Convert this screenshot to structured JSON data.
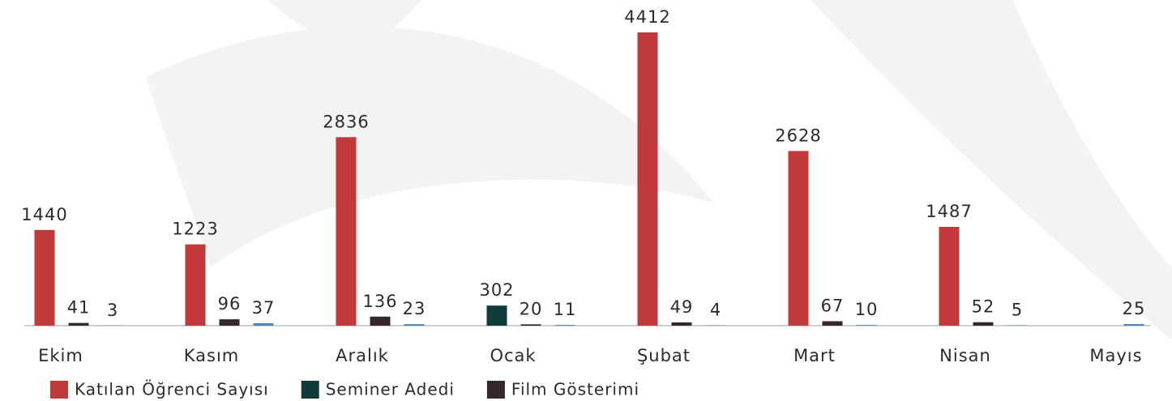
{
  "chart_data": {
    "type": "bar",
    "categories": [
      "Ekim",
      "Kasım",
      "Aralık",
      "Ocak",
      "Şubat",
      "Mart",
      "Nisan",
      "Mayıs"
    ],
    "series": [
      {
        "name": "Katılan Öğrenci Sayısı",
        "color": "#c2393c",
        "values": [
          1440,
          1223,
          2836,
          null,
          4412,
          2628,
          1487,
          null
        ]
      },
      {
        "name": "Seminer Adedi",
        "color": "#0f3b3a",
        "values": [
          null,
          null,
          null,
          302,
          null,
          null,
          null,
          null
        ]
      },
      {
        "name": "Film Gösterimi",
        "color": "#34282b",
        "values": [
          41,
          96,
          136,
          20,
          49,
          67,
          52,
          null
        ]
      },
      {
        "color": "#4a86b8",
        "values": [
          3,
          37,
          23,
          11,
          4,
          10,
          5,
          25
        ]
      }
    ]
  }
}
